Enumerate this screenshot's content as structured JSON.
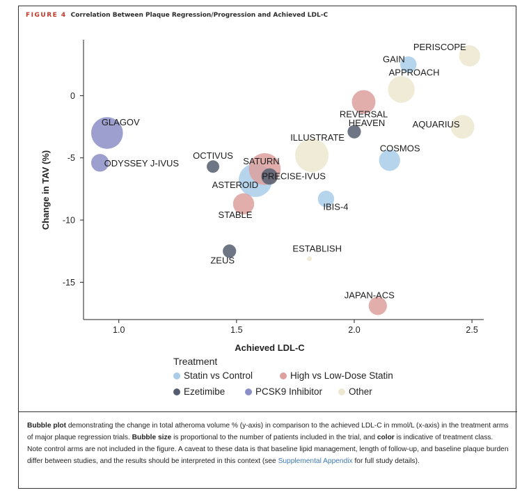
{
  "figure": {
    "label": "FIGURE 4",
    "title": "Correlation Between Plaque Regression/Progression and Achieved LDL-C"
  },
  "colors": {
    "statin_vs_control": "#a9cde8",
    "high_vs_low_dose_statin": "#dca09e",
    "ezetimibe": "#555e70",
    "pcsk9_inhibitor": "#8c8fc7",
    "other": "#ede7d0"
  },
  "chart_data": {
    "type": "scatter",
    "subtype": "bubble",
    "xlabel": "Achieved LDL-C",
    "ylabel": "Change in TAV (%)",
    "xlim": [
      0.85,
      2.55
    ],
    "ylim": [
      -18,
      4.5
    ],
    "xticks": [
      1.0,
      1.5,
      2.0,
      2.5
    ],
    "xtick_labels": [
      "1.0",
      "1.5",
      "2.0",
      "2.5"
    ],
    "yticks": [
      0,
      -5,
      -10,
      -15
    ],
    "ytick_labels": [
      "0",
      "-5",
      "-10",
      "-15"
    ],
    "grid": false,
    "legend": {
      "title": "Treatment",
      "placement": "bottom",
      "entries": [
        {
          "label": "Statin vs Control",
          "key": "statin_vs_control"
        },
        {
          "label": "High vs Low-Dose Statin",
          "key": "high_vs_low_dose_statin"
        },
        {
          "label": "Ezetimibe",
          "key": "ezetimibe"
        },
        {
          "label": "PCSK9 Inhibitor",
          "key": "pcsk9_inhibitor"
        },
        {
          "label": "Other",
          "key": "other"
        }
      ]
    },
    "points": [
      {
        "name": "PERISCOPE",
        "x": 2.49,
        "y": 3.2,
        "size": 0.2,
        "treatment": "other"
      },
      {
        "name": "GAIN",
        "x": 2.23,
        "y": 2.5,
        "size": 0.12,
        "treatment": "statin_vs_control"
      },
      {
        "name": "APPROACH",
        "x": 2.2,
        "y": 0.5,
        "size": 0.32,
        "treatment": "other"
      },
      {
        "name": "REVERSAL",
        "x": 2.04,
        "y": -0.5,
        "size": 0.25,
        "treatment": "high_vs_low_dose_statin"
      },
      {
        "name": "HEAVEN",
        "x": 2.0,
        "y": -2.9,
        "size": 0.08,
        "treatment": "ezetimibe"
      },
      {
        "name": "AQUARIUS",
        "x": 2.46,
        "y": -2.5,
        "size": 0.25,
        "treatment": "other"
      },
      {
        "name": "ILLUSTRATE",
        "x": 1.82,
        "y": -4.8,
        "size": 0.5,
        "treatment": "other"
      },
      {
        "name": "COSMOS",
        "x": 2.15,
        "y": -5.2,
        "size": 0.2,
        "treatment": "statin_vs_control"
      },
      {
        "name": "GLAGOV",
        "x": 0.95,
        "y": -3.0,
        "size": 0.45,
        "treatment": "pcsk9_inhibitor"
      },
      {
        "name": "ODYSSEY J-IVUS",
        "x": 0.92,
        "y": -5.4,
        "size": 0.14,
        "treatment": "pcsk9_inhibitor"
      },
      {
        "name": "OCTIVUS",
        "x": 1.4,
        "y": -5.7,
        "size": 0.07,
        "treatment": "ezetimibe"
      },
      {
        "name": "SATURN",
        "x": 1.62,
        "y": -5.9,
        "size": 0.45,
        "treatment": "high_vs_low_dose_statin"
      },
      {
        "name": "ASTEROID",
        "x": 1.58,
        "y": -6.8,
        "size": 0.5,
        "treatment": "statin_vs_control"
      },
      {
        "name": "PRECISE-IVUS",
        "x": 1.64,
        "y": -6.5,
        "size": 0.12,
        "treatment": "ezetimibe"
      },
      {
        "name": "STABLE",
        "x": 1.53,
        "y": -8.7,
        "size": 0.2,
        "treatment": "high_vs_low_dose_statin"
      },
      {
        "name": "IBIS-4",
        "x": 1.88,
        "y": -8.3,
        "size": 0.12,
        "treatment": "statin_vs_control"
      },
      {
        "name": "ZEUS",
        "x": 1.47,
        "y": -12.5,
        "size": 0.08,
        "treatment": "ezetimibe"
      },
      {
        "name": "ESTABLISH",
        "x": 1.81,
        "y": -13.1,
        "size": 0.01,
        "treatment": "other"
      },
      {
        "name": "JAPAN-ACS",
        "x": 2.1,
        "y": -16.9,
        "size": 0.15,
        "treatment": "high_vs_low_dose_statin"
      }
    ]
  },
  "caption": {
    "bubble_plot_bold": "Bubble plot",
    "part1": " demonstrating the change in total atheroma volume % (y-axis) in comparison to the achieved LDL-C in mmol/L (x-axis) in the treatment arms of major plaque regression trials. ",
    "bubble_size_bold": "Bubble size",
    "part2": " is proportional to the number of patients included in the trial, and ",
    "color_bold": "color",
    "part3": " is indicative of treatment class. Note control arms are not included in the figure. A caveat to these data is that baseline lipid management, length of follow-up, and baseline plaque burden differ between studies, and the results should be interpreted in this context (see ",
    "link": "Supplemental Appendix",
    "part4": " for full study details)."
  }
}
